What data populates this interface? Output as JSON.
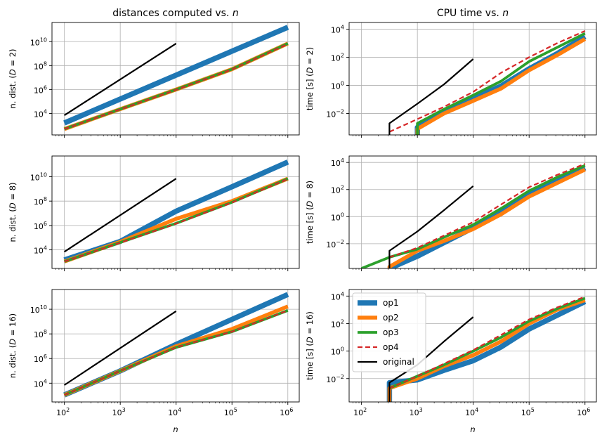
{
  "chart_data": [
    {
      "type": "line",
      "column": "left",
      "row": 0,
      "title": "distances computed vs. ",
      "title_var": "n",
      "ylabel_prefix": "n. dist. (",
      "ylabel_var": "D",
      "ylabel_suffix": " = 2)",
      "xlabel": "",
      "xscale": "log",
      "yscale": "log",
      "grid": true,
      "xlim": [
        60,
        1600000.0
      ],
      "ylim": [
        160.0,
        400000000000.0
      ],
      "xticks": [
        {
          "v": 100,
          "e": "2"
        },
        {
          "v": 1000,
          "e": "3"
        },
        {
          "v": 10000,
          "e": "4"
        },
        {
          "v": 100000,
          "e": "5"
        },
        {
          "v": 1000000,
          "e": "6"
        }
      ],
      "yticks": [
        {
          "v": 10000,
          "e": "4"
        },
        {
          "v": 1000000,
          "e": "6"
        },
        {
          "v": 100000000,
          "e": "8"
        },
        {
          "v": 10000000000,
          "e": "10"
        }
      ],
      "series": [
        {
          "name": "op1",
          "x": [
            100,
            1000000
          ],
          "y": [
            1600.0,
            160000000000.0
          ]
        },
        {
          "name": "op2",
          "x": [
            100,
            1000,
            10000,
            100000,
            1000000
          ],
          "y": [
            500.0,
            23000.0,
            1000000.0,
            50000000.0,
            7000000000.0
          ]
        },
        {
          "name": "op3",
          "x": [
            100,
            1000,
            10000,
            100000,
            1000000
          ],
          "y": [
            500.0,
            23000.0,
            1000000.0,
            50000000.0,
            7000000000.0
          ]
        },
        {
          "name": "op4",
          "x": [
            100,
            1000,
            10000,
            100000,
            1000000
          ],
          "y": [
            500.0,
            22000.0,
            950000.0,
            48000000.0,
            6500000000.0
          ]
        },
        {
          "name": "original",
          "x": [
            100,
            10000
          ],
          "y": [
            7000.0,
            7000000000.0
          ]
        }
      ]
    },
    {
      "type": "line",
      "column": "right",
      "row": 0,
      "title": "CPU time vs. ",
      "title_var": "n",
      "ylabel_prefix": "time [s] (",
      "ylabel_var": "D",
      "ylabel_suffix": " = 2)",
      "xlabel": "",
      "xscale": "log",
      "yscale": "log",
      "grid": true,
      "xlim": [
        60,
        1600000.0
      ],
      "ylim": [
        0.0003,
        30000.0
      ],
      "xticks": [
        {
          "v": 100,
          "e": "2"
        },
        {
          "v": 1000,
          "e": "3"
        },
        {
          "v": 10000,
          "e": "4"
        },
        {
          "v": 100000,
          "e": "5"
        },
        {
          "v": 1000000,
          "e": "6"
        }
      ],
      "yticks": [
        {
          "v": 0.01,
          "e": "−2"
        },
        {
          "v": 1,
          "e": "0"
        },
        {
          "v": 100,
          "e": "2"
        },
        {
          "v": 10000,
          "e": "4"
        }
      ],
      "series": [
        {
          "name": "op1",
          "x": [
            1000,
            1000,
            3000,
            10000,
            31600,
            100000,
            316000,
            1000000
          ],
          "y": [
            0.0003,
            0.001,
            0.014,
            0.12,
            0.9,
            15,
            180,
            3000
          ]
        },
        {
          "name": "op2",
          "x": [
            1000,
            1000,
            3000,
            10000,
            31600,
            100000,
            316000,
            1000000
          ],
          "y": [
            0.0003,
            0.0008,
            0.01,
            0.08,
            0.6,
            12,
            140,
            2000
          ]
        },
        {
          "name": "op3",
          "x": [
            1000,
            1000,
            3000,
            10000,
            31600,
            100000,
            316000,
            1000000
          ],
          "y": [
            0.0003,
            0.002,
            0.02,
            0.2,
            2,
            50,
            500,
            5000
          ]
        },
        {
          "name": "op4",
          "x": [
            316,
            1000,
            3000,
            10000,
            31600,
            100000,
            316000,
            1000000
          ],
          "y": [
            0.0005,
            0.004,
            0.03,
            0.35,
            8,
            100,
            1000,
            7500
          ]
        },
        {
          "name": "original",
          "x": [
            316,
            316,
            1000,
            3000,
            10000
          ],
          "y": [
            0.0003,
            0.002,
            0.05,
            1.2,
            75
          ]
        }
      ]
    },
    {
      "type": "line",
      "column": "left",
      "row": 1,
      "title": "",
      "title_var": "",
      "ylabel_prefix": "n. dist. (",
      "ylabel_var": "D",
      "ylabel_suffix": " = 8)",
      "xlabel": "",
      "xscale": "log",
      "yscale": "log",
      "grid": true,
      "xlim": [
        60,
        1600000.0
      ],
      "ylim": [
        300.0,
        500000000000.0
      ],
      "xticks": [
        {
          "v": 100,
          "e": "2"
        },
        {
          "v": 1000,
          "e": "3"
        },
        {
          "v": 10000,
          "e": "4"
        },
        {
          "v": 100000,
          "e": "5"
        },
        {
          "v": 1000000,
          "e": "6"
        }
      ],
      "yticks": [
        {
          "v": 10000,
          "e": "4"
        },
        {
          "v": 1000000,
          "e": "6"
        },
        {
          "v": 100000000,
          "e": "8"
        },
        {
          "v": 10000000000,
          "e": "10"
        }
      ],
      "series": [
        {
          "name": "op1",
          "x": [
            100,
            1000,
            10000,
            100000,
            1000000
          ],
          "y": [
            1500.0,
            50000.0,
            15000000.0,
            1500000000.0,
            160000000000.0
          ]
        },
        {
          "name": "op2",
          "x": [
            100,
            1000,
            10000,
            100000,
            1000000
          ],
          "y": [
            1100.0,
            45000.0,
            3500000.0,
            100000000.0,
            7000000000.0
          ]
        },
        {
          "name": "op3",
          "x": [
            100,
            1000,
            10000,
            100000,
            1000000
          ],
          "y": [
            1100.0,
            40000.0,
            1500000.0,
            80000000.0,
            7000000000.0
          ]
        },
        {
          "name": "op4",
          "x": [
            100,
            1000,
            10000,
            100000,
            1000000
          ],
          "y": [
            1100.0,
            38000.0,
            1400000.0,
            75000000.0,
            6500000000.0
          ]
        },
        {
          "name": "original",
          "x": [
            100,
            10000
          ],
          "y": [
            7000.0,
            7000000000.0
          ]
        }
      ]
    },
    {
      "type": "line",
      "column": "right",
      "row": 1,
      "title": "",
      "title_var": "",
      "ylabel_prefix": "time [s] (",
      "ylabel_var": "D",
      "ylabel_suffix": " = 8)",
      "xlabel": "",
      "xscale": "log",
      "yscale": "log",
      "grid": true,
      "xlim": [
        60,
        1600000.0
      ],
      "ylim": [
        0.00015,
        30000.0
      ],
      "xticks": [
        {
          "v": 100,
          "e": "2"
        },
        {
          "v": 1000,
          "e": "3"
        },
        {
          "v": 10000,
          "e": "4"
        },
        {
          "v": 100000,
          "e": "5"
        },
        {
          "v": 1000000,
          "e": "6"
        }
      ],
      "yticks": [
        {
          "v": 0.01,
          "e": "−2"
        },
        {
          "v": 1,
          "e": "0"
        },
        {
          "v": 100,
          "e": "2"
        },
        {
          "v": 10000,
          "e": "4"
        }
      ],
      "series": [
        {
          "name": "op1",
          "x": [
            316,
            1000,
            3000,
            10000,
            31600,
            100000,
            316000,
            1000000
          ],
          "y": [
            0.00015,
            0.0012,
            0.012,
            0.15,
            2,
            40,
            400,
            4000
          ]
        },
        {
          "name": "op2",
          "x": [
            316,
            316,
            1000,
            3000,
            10000,
            31600,
            100000,
            316000,
            1000000
          ],
          "y": [
            0.00015,
            0.0002,
            0.003,
            0.016,
            0.12,
            1.5,
            30,
            300,
            3000
          ]
        },
        {
          "name": "op3",
          "x": [
            100,
            316,
            1000,
            3000,
            10000,
            31600,
            100000,
            316000,
            1000000
          ],
          "y": [
            0.00015,
            0.001,
            0.004,
            0.03,
            0.25,
            4,
            80,
            800,
            6000
          ]
        },
        {
          "name": "op4",
          "x": [
            316,
            1000,
            3000,
            10000,
            31600,
            100000,
            316000,
            1000000
          ],
          "y": [
            0.001,
            0.005,
            0.04,
            0.4,
            8,
            150,
            1200,
            8000
          ]
        },
        {
          "name": "original",
          "x": [
            316,
            316,
            1000,
            3000,
            10000
          ],
          "y": [
            0.00015,
            0.003,
            0.08,
            3,
            180
          ]
        }
      ]
    },
    {
      "type": "line",
      "column": "left",
      "row": 2,
      "title": "",
      "title_var": "",
      "ylabel_prefix": "n. dist. (",
      "ylabel_var": "D",
      "ylabel_suffix": " = 16)",
      "xlabel": "n",
      "xscale": "log",
      "yscale": "log",
      "grid": true,
      "xlim": [
        60,
        1600000.0
      ],
      "ylim": [
        300.0,
        400000000000.0
      ],
      "xticks": [
        {
          "v": 100,
          "e": "2"
        },
        {
          "v": 1000,
          "e": "3"
        },
        {
          "v": 10000,
          "e": "4"
        },
        {
          "v": 100000,
          "e": "5"
        },
        {
          "v": 1000000,
          "e": "6"
        }
      ],
      "yticks": [
        {
          "v": 10000,
          "e": "4"
        },
        {
          "v": 1000000,
          "e": "6"
        },
        {
          "v": 100000000,
          "e": "8"
        },
        {
          "v": 10000000000,
          "e": "10"
        }
      ],
      "series": [
        {
          "name": "op1",
          "x": [
            100,
            1000,
            10000,
            100000,
            1000000
          ],
          "y": [
            1100.0,
            100000.0,
            14000000.0,
            1500000000.0,
            160000000000.0
          ]
        },
        {
          "name": "op2",
          "x": [
            100,
            1000,
            10000,
            100000,
            1000000
          ],
          "y": [
            1100.0,
            100000.0,
            10000000.0,
            250000000.0,
            17000000000.0
          ]
        },
        {
          "name": "op3",
          "x": [
            100,
            1000,
            10000,
            100000,
            1000000
          ],
          "y": [
            1100.0,
            100000.0,
            8000000.0,
            150000000.0,
            8000000000.0
          ]
        },
        {
          "name": "op4",
          "x": [
            100,
            1000,
            10000,
            100000,
            1000000
          ],
          "y": [
            1100.0,
            100000.0,
            8000000.0,
            150000000.0,
            8000000000.0
          ]
        },
        {
          "name": "original",
          "x": [
            100,
            10000
          ],
          "y": [
            7000.0,
            7000000000.0
          ]
        }
      ]
    },
    {
      "type": "line",
      "column": "right",
      "row": 2,
      "title": "",
      "title_var": "",
      "ylabel_prefix": "time [s] (",
      "ylabel_var": "D",
      "ylabel_suffix": " = 16)",
      "xlabel": "n",
      "xscale": "log",
      "yscale": "log",
      "grid": true,
      "xlim": [
        60,
        1600000.0
      ],
      "ylim": [
        0.0002,
        30000.0
      ],
      "xticks": [
        {
          "v": 100,
          "e": "2"
        },
        {
          "v": 1000,
          "e": "3"
        },
        {
          "v": 10000,
          "e": "4"
        },
        {
          "v": 100000,
          "e": "5"
        },
        {
          "v": 1000000,
          "e": "6"
        }
      ],
      "yticks": [
        {
          "v": 0.01,
          "e": "−2"
        },
        {
          "v": 1,
          "e": "0"
        },
        {
          "v": 100,
          "e": "2"
        },
        {
          "v": 10000,
          "e": "4"
        }
      ],
      "series": [
        {
          "name": "op1",
          "x": [
            316,
            316,
            1000,
            3000,
            10000,
            31600,
            100000,
            316000,
            1000000
          ],
          "y": [
            0.0002,
            0.005,
            0.008,
            0.04,
            0.2,
            2,
            40,
            400,
            4000
          ]
        },
        {
          "name": "op2",
          "x": [
            316,
            316,
            1000,
            3000,
            10000,
            31600,
            100000,
            316000,
            1000000
          ],
          "y": [
            0.0002,
            0.002,
            0.01,
            0.08,
            0.5,
            5,
            100,
            1000,
            5000
          ]
        },
        {
          "name": "op3",
          "x": [
            316,
            1000,
            3000,
            10000,
            31600,
            100000,
            316000,
            1000000
          ],
          "y": [
            0.002,
            0.015,
            0.1,
            1,
            10,
            150,
            1200,
            7000
          ]
        },
        {
          "name": "op4",
          "x": [
            316,
            1000,
            3000,
            10000,
            31600,
            100000,
            316000,
            1000000
          ],
          "y": [
            0.002,
            0.015,
            0.12,
            1.2,
            15,
            200,
            1500,
            9000
          ]
        },
        {
          "name": "original",
          "x": [
            316,
            316,
            1000,
            3000,
            10000
          ],
          "y": [
            0.0002,
            0.005,
            0.1,
            5,
            300
          ]
        }
      ]
    }
  ],
  "legend": {
    "placement": "upper-left of bottom-right panel",
    "entries": [
      {
        "name": "op1",
        "color": "#1f77b4",
        "dash": "solid"
      },
      {
        "name": "op2",
        "color": "#ff7f0e",
        "dash": "solid"
      },
      {
        "name": "op3",
        "color": "#2ca02c",
        "dash": "solid"
      },
      {
        "name": "op4",
        "color": "#d62728",
        "dash": "dashed"
      },
      {
        "name": "original",
        "color": "#000000",
        "dash": "solid"
      }
    ]
  }
}
